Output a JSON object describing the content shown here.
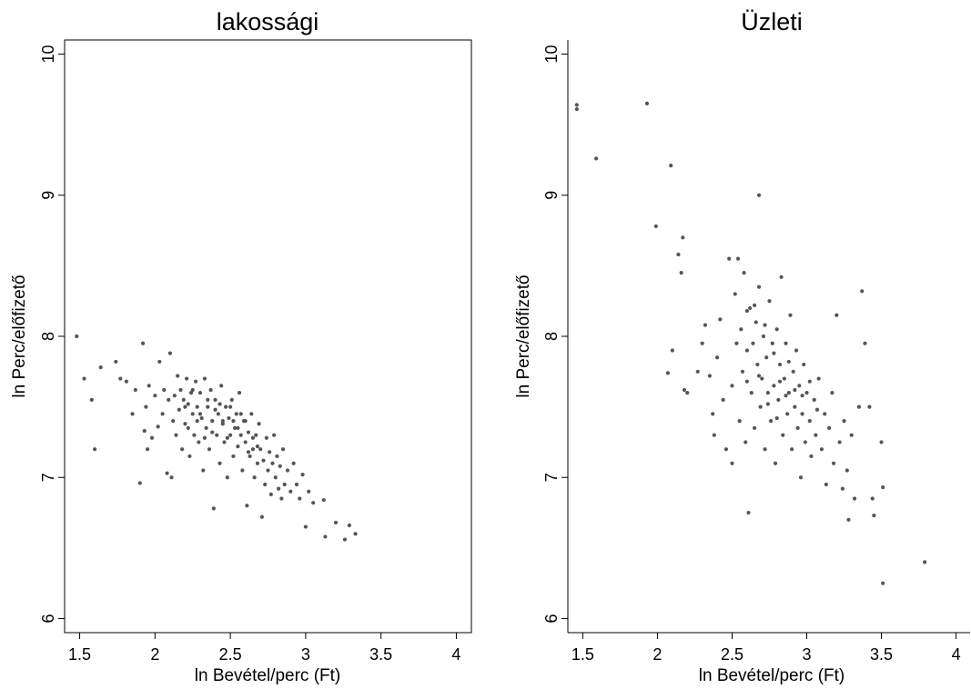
{
  "chart_data": [
    {
      "type": "scatter",
      "title": "lakossági",
      "xlabel": "ln Bevétel/perc (Ft)",
      "ylabel": "ln Perc/előfizető",
      "xlim": [
        1.4,
        4.1
      ],
      "ylim": [
        5.9,
        10.1
      ],
      "xticks": [
        "1.5",
        "2",
        "2.5",
        "3",
        "3.5",
        "4"
      ],
      "yticks": [
        "6",
        "7",
        "8",
        "9",
        "10"
      ],
      "grid": false,
      "marker_color": "#555555",
      "points": [
        [
          1.48,
          8.0
        ],
        [
          1.53,
          7.7
        ],
        [
          1.58,
          7.55
        ],
        [
          1.6,
          7.2
        ],
        [
          1.64,
          7.78
        ],
        [
          1.74,
          7.82
        ],
        [
          1.77,
          7.7
        ],
        [
          1.81,
          7.68
        ],
        [
          1.85,
          7.45
        ],
        [
          1.87,
          7.62
        ],
        [
          1.9,
          6.96
        ],
        [
          1.92,
          7.95
        ],
        [
          1.93,
          7.33
        ],
        [
          1.94,
          7.5
        ],
        [
          1.95,
          7.2
        ],
        [
          1.96,
          7.65
        ],
        [
          1.98,
          7.28
        ],
        [
          2.0,
          7.58
        ],
        [
          2.02,
          7.36
        ],
        [
          2.03,
          7.82
        ],
        [
          2.05,
          7.45
        ],
        [
          2.06,
          7.62
        ],
        [
          2.08,
          7.03
        ],
        [
          2.09,
          7.55
        ],
        [
          2.1,
          7.88
        ],
        [
          2.11,
          7.0
        ],
        [
          2.12,
          7.4
        ],
        [
          2.13,
          7.58
        ],
        [
          2.14,
          7.3
        ],
        [
          2.15,
          7.72
        ],
        [
          2.16,
          7.48
        ],
        [
          2.17,
          7.62
        ],
        [
          2.18,
          7.2
        ],
        [
          2.19,
          7.55
        ],
        [
          2.2,
          7.38
        ],
        [
          2.21,
          7.7
        ],
        [
          2.22,
          7.52
        ],
        [
          2.23,
          7.15
        ],
        [
          2.24,
          7.6
        ],
        [
          2.25,
          7.45
        ],
        [
          2.26,
          7.3
        ],
        [
          2.27,
          7.68
        ],
        [
          2.28,
          7.5
        ],
        [
          2.29,
          7.25
        ],
        [
          2.3,
          7.6
        ],
        [
          2.31,
          7.42
        ],
        [
          2.32,
          7.05
        ],
        [
          2.33,
          7.7
        ],
        [
          2.34,
          7.35
        ],
        [
          2.35,
          7.5
        ],
        [
          2.36,
          7.2
        ],
        [
          2.37,
          7.62
        ],
        [
          2.38,
          7.4
        ],
        [
          2.39,
          6.78
        ],
        [
          2.4,
          7.55
        ],
        [
          2.41,
          7.3
        ],
        [
          2.42,
          7.45
        ],
        [
          2.43,
          7.1
        ],
        [
          2.44,
          7.65
        ],
        [
          2.45,
          7.38
        ],
        [
          2.46,
          7.25
        ],
        [
          2.47,
          7.5
        ],
        [
          2.48,
          7.0
        ],
        [
          2.49,
          7.42
        ],
        [
          2.5,
          7.3
        ],
        [
          2.51,
          7.55
        ],
        [
          2.52,
          7.15
        ],
        [
          2.53,
          7.35
        ],
        [
          2.54,
          7.45
        ],
        [
          2.55,
          7.22
        ],
        [
          2.56,
          7.6
        ],
        [
          2.57,
          7.3
        ],
        [
          2.58,
          7.05
        ],
        [
          2.59,
          7.4
        ],
        [
          2.6,
          7.25
        ],
        [
          2.61,
          6.8
        ],
        [
          2.62,
          7.32
        ],
        [
          2.63,
          7.15
        ],
        [
          2.64,
          7.45
        ],
        [
          2.65,
          7.2
        ],
        [
          2.66,
          7.0
        ],
        [
          2.67,
          7.3
        ],
        [
          2.68,
          7.1
        ],
        [
          2.69,
          7.38
        ],
        [
          2.7,
          7.2
        ],
        [
          2.71,
          6.72
        ],
        [
          2.72,
          7.12
        ],
        [
          2.73,
          6.95
        ],
        [
          2.74,
          7.28
        ],
        [
          2.75,
          7.05
        ],
        [
          2.76,
          7.18
        ],
        [
          2.77,
          6.88
        ],
        [
          2.78,
          7.1
        ],
        [
          2.79,
          7.3
        ],
        [
          2.8,
          7.0
        ],
        [
          2.81,
          7.15
        ],
        [
          2.82,
          6.92
        ],
        [
          2.83,
          7.08
        ],
        [
          2.84,
          6.85
        ],
        [
          2.85,
          7.2
        ],
        [
          2.86,
          6.95
        ],
        [
          2.88,
          7.05
        ],
        [
          2.9,
          6.9
        ],
        [
          2.92,
          7.1
        ],
        [
          2.94,
          6.95
        ],
        [
          2.96,
          6.85
        ],
        [
          2.98,
          7.02
        ],
        [
          3.0,
          6.65
        ],
        [
          3.02,
          6.9
        ],
        [
          3.05,
          6.82
        ],
        [
          3.12,
          6.84
        ],
        [
          3.13,
          6.58
        ],
        [
          3.2,
          6.68
        ],
        [
          3.26,
          6.56
        ],
        [
          3.29,
          6.66
        ],
        [
          3.33,
          6.6
        ],
        [
          2.2,
          7.5
        ],
        [
          2.25,
          7.62
        ],
        [
          2.3,
          7.45
        ],
        [
          2.35,
          7.55
        ],
        [
          2.4,
          7.48
        ],
        [
          2.45,
          7.4
        ],
        [
          2.5,
          7.5
        ],
        [
          2.55,
          7.35
        ],
        [
          2.6,
          7.4
        ],
        [
          2.65,
          7.28
        ],
        [
          2.22,
          7.35
        ],
        [
          2.28,
          7.4
        ],
        [
          2.33,
          7.28
        ],
        [
          2.38,
          7.32
        ],
        [
          2.43,
          7.52
        ],
        [
          2.48,
          7.28
        ],
        [
          2.52,
          7.4
        ],
        [
          2.57,
          7.45
        ],
        [
          2.62,
          7.18
        ],
        [
          2.68,
          7.22
        ]
      ]
    },
    {
      "type": "scatter",
      "title": "Üzleti",
      "xlabel": "ln Bevétel/perc (Ft)",
      "ylabel": "ln Perc/előfizető",
      "xlim": [
        1.4,
        4.1
      ],
      "ylim": [
        5.9,
        10.1
      ],
      "xticks": [
        "1.5",
        "2",
        "2.5",
        "3",
        "3.5",
        "4"
      ],
      "yticks": [
        "6",
        "7",
        "8",
        "9",
        "10"
      ],
      "grid": false,
      "marker_color": "#555555",
      "points": [
        [
          1.46,
          9.64
        ],
        [
          1.46,
          9.61
        ],
        [
          1.59,
          9.26
        ],
        [
          1.93,
          9.65
        ],
        [
          2.09,
          9.21
        ],
        [
          1.99,
          8.78
        ],
        [
          2.17,
          8.7
        ],
        [
          2.14,
          8.58
        ],
        [
          2.16,
          8.45
        ],
        [
          2.68,
          9.0
        ],
        [
          2.07,
          7.74
        ],
        [
          2.1,
          7.9
        ],
        [
          2.18,
          7.62
        ],
        [
          2.32,
          8.08
        ],
        [
          2.35,
          7.72
        ],
        [
          2.37,
          7.45
        ],
        [
          2.38,
          7.3
        ],
        [
          2.4,
          7.85
        ],
        [
          2.42,
          8.12
        ],
        [
          2.44,
          7.55
        ],
        [
          2.46,
          7.2
        ],
        [
          2.48,
          8.55
        ],
        [
          2.5,
          7.65
        ],
        [
          2.5,
          7.1
        ],
        [
          2.52,
          8.3
        ],
        [
          2.53,
          7.95
        ],
        [
          2.54,
          8.55
        ],
        [
          2.55,
          7.4
        ],
        [
          2.56,
          8.05
        ],
        [
          2.57,
          7.75
        ],
        [
          2.58,
          8.45
        ],
        [
          2.59,
          7.25
        ],
        [
          2.6,
          7.9
        ],
        [
          2.61,
          6.75
        ],
        [
          2.62,
          8.2
        ],
        [
          2.63,
          7.6
        ],
        [
          2.64,
          7.95
        ],
        [
          2.65,
          7.35
        ],
        [
          2.66,
          8.1
        ],
        [
          2.67,
          7.8
        ],
        [
          2.68,
          8.35
        ],
        [
          2.69,
          7.5
        ],
        [
          2.7,
          7.7
        ],
        [
          2.71,
          8.0
        ],
        [
          2.72,
          7.2
        ],
        [
          2.73,
          7.85
        ],
        [
          2.74,
          7.6
        ],
        [
          2.75,
          8.25
        ],
        [
          2.76,
          7.4
        ],
        [
          2.77,
          7.95
        ],
        [
          2.78,
          7.65
        ],
        [
          2.79,
          7.1
        ],
        [
          2.8,
          8.05
        ],
        [
          2.81,
          7.55
        ],
        [
          2.82,
          7.8
        ],
        [
          2.83,
          8.42
        ],
        [
          2.84,
          7.3
        ],
        [
          2.85,
          7.7
        ],
        [
          2.86,
          7.95
        ],
        [
          2.87,
          7.45
        ],
        [
          2.88,
          7.6
        ],
        [
          2.89,
          8.15
        ],
        [
          2.9,
          7.2
        ],
        [
          2.91,
          7.75
        ],
        [
          2.92,
          7.5
        ],
        [
          2.93,
          7.9
        ],
        [
          2.94,
          7.35
        ],
        [
          2.95,
          7.65
        ],
        [
          2.96,
          7.0
        ],
        [
          2.97,
          7.45
        ],
        [
          2.98,
          7.8
        ],
        [
          2.99,
          7.25
        ],
        [
          3.0,
          7.6
        ],
        [
          3.02,
          7.4
        ],
        [
          3.03,
          7.15
        ],
        [
          3.05,
          7.55
        ],
        [
          3.06,
          7.3
        ],
        [
          3.08,
          7.7
        ],
        [
          3.1,
          7.2
        ],
        [
          3.12,
          7.45
        ],
        [
          3.13,
          6.95
        ],
        [
          3.15,
          7.35
        ],
        [
          3.17,
          7.6
        ],
        [
          3.18,
          7.1
        ],
        [
          3.2,
          8.15
        ],
        [
          3.22,
          7.25
        ],
        [
          3.24,
          6.92
        ],
        [
          3.25,
          7.4
        ],
        [
          3.27,
          7.05
        ],
        [
          3.28,
          6.7
        ],
        [
          3.3,
          7.3
        ],
        [
          3.32,
          6.85
        ],
        [
          3.35,
          7.5
        ],
        [
          3.37,
          8.32
        ],
        [
          3.39,
          7.95
        ],
        [
          3.42,
          7.5
        ],
        [
          3.44,
          6.85
        ],
        [
          3.45,
          6.73
        ],
        [
          3.5,
          7.25
        ],
        [
          3.51,
          6.25
        ],
        [
          3.51,
          6.93
        ],
        [
          3.79,
          6.4
        ],
        [
          2.2,
          7.6
        ],
        [
          2.27,
          7.75
        ],
        [
          2.3,
          7.95
        ],
        [
          2.6,
          8.18
        ],
        [
          2.65,
          8.22
        ],
        [
          2.72,
          8.08
        ],
        [
          2.78,
          7.88
        ],
        [
          2.82,
          7.68
        ],
        [
          2.88,
          7.82
        ],
        [
          2.92,
          7.62
        ],
        [
          2.97,
          7.58
        ],
        [
          3.02,
          7.68
        ],
        [
          3.07,
          7.48
        ],
        [
          2.6,
          7.68
        ],
        [
          2.68,
          7.72
        ],
        [
          2.74,
          7.52
        ],
        [
          2.8,
          7.42
        ],
        [
          2.86,
          7.58
        ]
      ]
    }
  ]
}
